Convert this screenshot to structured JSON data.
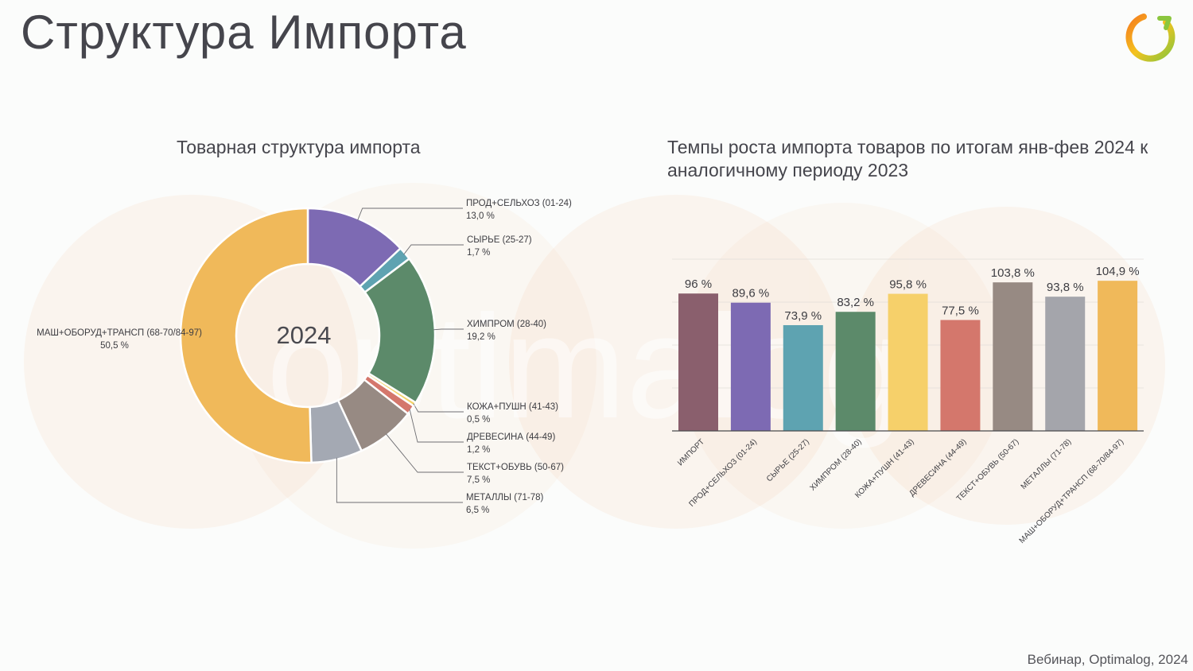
{
  "page": {
    "title": "Структура Импорта",
    "footer": "Вебинар, Optimalog, 2024",
    "watermark": "optimalog",
    "logo_icon": "optimalog-ring-logo-icon",
    "colors": {
      "orange": "#f57c1f",
      "green": "#8bc63e",
      "text": "#45454c"
    }
  },
  "chart_data": [
    {
      "type": "pie",
      "style": "donut",
      "title": "Товарная структура импорта",
      "center_label": "2024",
      "slices": [
        {
          "label": "ПРОД+СЕЛЬХОЗ (01-24)",
          "value": 13.0,
          "value_label": "13,0 %",
          "color": "#7d6ab3"
        },
        {
          "label": "СЫРЬЕ (25-27)",
          "value": 1.7,
          "value_label": "1,7 %",
          "color": "#5ea3b1"
        },
        {
          "label": "ХИМПРОМ (28-40)",
          "value": 19.2,
          "value_label": "19,2 %",
          "color": "#5c8a6a"
        },
        {
          "label": "КОЖА+ПУШН (41-43)",
          "value": 0.5,
          "value_label": "0,5 %",
          "color": "#f3d36b"
        },
        {
          "label": "ДРЕВЕСИНА (44-49)",
          "value": 1.2,
          "value_label": "1,2 %",
          "color": "#d4776c"
        },
        {
          "label": "ТЕКСТ+ОБУВЬ (50-67)",
          "value": 7.5,
          "value_label": "7,5 %",
          "color": "#978a83"
        },
        {
          "label": "МЕТАЛЛЫ (71-78)",
          "value": 6.5,
          "value_label": "6,5 %",
          "color": "#a4a9b3"
        },
        {
          "label": "МАШ+ОБОРУД+ТРАНСП (68-70/84-97)",
          "value": 50.5,
          "value_label": "50,5 %",
          "color": "#f0b95a"
        }
      ]
    },
    {
      "type": "bar",
      "title": "Темпы роста импорта товаров по итогам янв-фев 2024 к аналогичному периоду 2023",
      "categories": [
        "ИМПОРТ",
        "ПРОД+СЕЛЬХОЗ (01-24)",
        "СЫРЬЕ (25-27)",
        "ХИМПРОМ (28-40)",
        "КОЖА+ПУШН (41-43)",
        "ДРЕВЕСИНА (44-49)",
        "ТЕКСТ+ОБУВЬ (50-67)",
        "МЕТАЛЛЫ (71-78)",
        "МАШ+ОБОРУД+ТРАНСП (68-70/84-97)"
      ],
      "values": [
        96,
        89.6,
        73.9,
        83.2,
        95.8,
        77.5,
        103.8,
        93.8,
        104.9
      ],
      "value_labels": [
        "96 %",
        "89,6 %",
        "73,9 %",
        "83,2 %",
        "95,8 %",
        "77,5 %",
        "103,8 %",
        "93,8 %",
        "104,9 %"
      ],
      "colors": [
        "#8a5f6d",
        "#7d6ab3",
        "#5ea3b1",
        "#5c8a6a",
        "#f6d06a",
        "#d4776c",
        "#978a83",
        "#a4a5ab",
        "#f0b95a"
      ],
      "ylim": [
        0,
        120
      ],
      "grid": true,
      "xlabel": "",
      "ylabel": ""
    }
  ]
}
